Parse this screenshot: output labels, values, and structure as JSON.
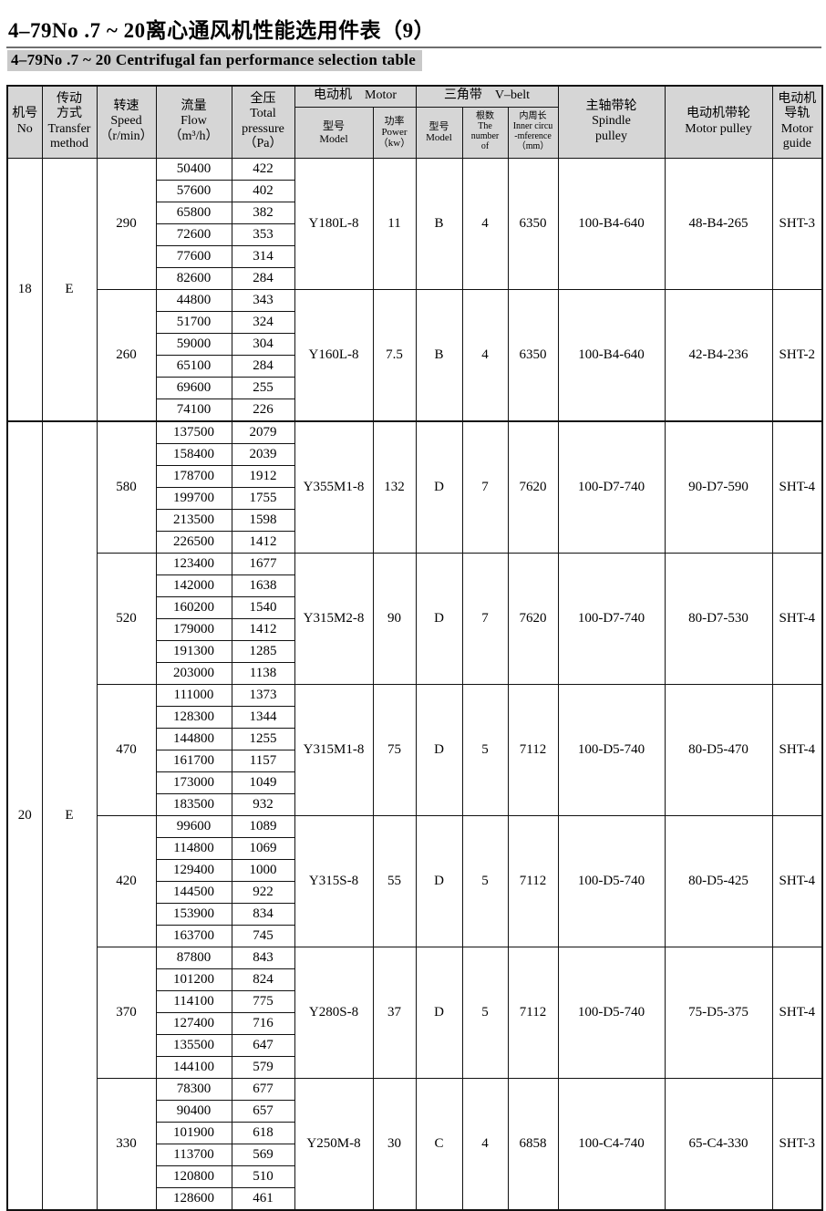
{
  "title": "4–79No .7 ~ 20离心通风机性能选用件表（9）",
  "subtitle": "4–79No .7 ~ 20 Centrifugal fan performance selection table",
  "colors": {
    "header_bg": "#d6d6d6",
    "subtitle_bg": "#c9c9c9",
    "border": "#111111",
    "text": "#000000"
  },
  "table": {
    "headers": {
      "no": "机号\nNo",
      "transfer": "传动\n方式\nTransfer\nmethod",
      "speed": "转速\nSpeed\n（r/min）",
      "flow": "流量\nFlow\n（m³/h）",
      "pressure": "全压\nTotal\npressure\n（Pa）",
      "motor_group": "电动机　Motor",
      "motor_model": "型号\nModel",
      "motor_power": "功率\nPower\n（kw）",
      "vbelt_group": "三角带　V–belt",
      "belt_model": "型号\nModel",
      "belt_number": "根数\nThe\nnumber\nof",
      "belt_circumference": "内周长\nInner circu\n-mference\n（mm）",
      "spindle_pulley": "主轴带轮\nSpindle\npulley",
      "motor_pulley": "电动机带轮\nMotor pulley",
      "motor_guide": "电动机\n导轨\nMotor\nguide"
    },
    "sections": [
      {
        "no": "18",
        "transfer": "E",
        "subsections": [
          {
            "speed": "290",
            "rows": [
              [
                "50400",
                "422"
              ],
              [
                "57600",
                "402"
              ],
              [
                "65800",
                "382"
              ],
              [
                "72600",
                "353"
              ],
              [
                "77600",
                "314"
              ],
              [
                "82600",
                "284"
              ]
            ],
            "motor_model": "Y180L-8",
            "motor_power": "11",
            "belt_model": "B",
            "belt_number": "4",
            "belt_circumference": "6350",
            "spindle_pulley": "100-B4-640",
            "motor_pulley": "48-B4-265",
            "motor_guide": "SHT-3"
          },
          {
            "speed": "260",
            "rows": [
              [
                "44800",
                "343"
              ],
              [
                "51700",
                "324"
              ],
              [
                "59000",
                "304"
              ],
              [
                "65100",
                "284"
              ],
              [
                "69600",
                "255"
              ],
              [
                "74100",
                "226"
              ]
            ],
            "motor_model": "Y160L-8",
            "motor_power": "7.5",
            "belt_model": "B",
            "belt_number": "4",
            "belt_circumference": "6350",
            "spindle_pulley": "100-B4-640",
            "motor_pulley": "42-B4-236",
            "motor_guide": "SHT-2"
          }
        ]
      },
      {
        "no": "20",
        "transfer": "E",
        "subsections": [
          {
            "speed": "580",
            "rows": [
              [
                "137500",
                "2079"
              ],
              [
                "158400",
                "2039"
              ],
              [
                "178700",
                "1912"
              ],
              [
                "199700",
                "1755"
              ],
              [
                "213500",
                "1598"
              ],
              [
                "226500",
                "1412"
              ]
            ],
            "motor_model": "Y355M1-8",
            "motor_power": "132",
            "belt_model": "D",
            "belt_number": "7",
            "belt_circumference": "7620",
            "spindle_pulley": "100-D7-740",
            "motor_pulley": "90-D7-590",
            "motor_guide": "SHT-4"
          },
          {
            "speed": "520",
            "rows": [
              [
                "123400",
                "1677"
              ],
              [
                "142000",
                "1638"
              ],
              [
                "160200",
                "1540"
              ],
              [
                "179000",
                "1412"
              ],
              [
                "191300",
                "1285"
              ],
              [
                "203000",
                "1138"
              ]
            ],
            "motor_model": "Y315M2-8",
            "motor_power": "90",
            "belt_model": "D",
            "belt_number": "7",
            "belt_circumference": "7620",
            "spindle_pulley": "100-D7-740",
            "motor_pulley": "80-D7-530",
            "motor_guide": "SHT-4"
          },
          {
            "speed": "470",
            "rows": [
              [
                "111000",
                "1373"
              ],
              [
                "128300",
                "1344"
              ],
              [
                "144800",
                "1255"
              ],
              [
                "161700",
                "1157"
              ],
              [
                "173000",
                "1049"
              ],
              [
                "183500",
                "932"
              ]
            ],
            "motor_model": "Y315M1-8",
            "motor_power": "75",
            "belt_model": "D",
            "belt_number": "5",
            "belt_circumference": "7112",
            "spindle_pulley": "100-D5-740",
            "motor_pulley": "80-D5-470",
            "motor_guide": "SHT-4"
          },
          {
            "speed": "420",
            "rows": [
              [
                "99600",
                "1089"
              ],
              [
                "114800",
                "1069"
              ],
              [
                "129400",
                "1000"
              ],
              [
                "144500",
                "922"
              ],
              [
                "153900",
                "834"
              ],
              [
                "163700",
                "745"
              ]
            ],
            "motor_model": "Y315S-8",
            "motor_power": "55",
            "belt_model": "D",
            "belt_number": "5",
            "belt_circumference": "7112",
            "spindle_pulley": "100-D5-740",
            "motor_pulley": "80-D5-425",
            "motor_guide": "SHT-4"
          },
          {
            "speed": "370",
            "rows": [
              [
                "87800",
                "843"
              ],
              [
                "101200",
                "824"
              ],
              [
                "114100",
                "775"
              ],
              [
                "127400",
                "716"
              ],
              [
                "135500",
                "647"
              ],
              [
                "144100",
                "579"
              ]
            ],
            "motor_model": "Y280S-8",
            "motor_power": "37",
            "belt_model": "D",
            "belt_number": "5",
            "belt_circumference": "7112",
            "spindle_pulley": "100-D5-740",
            "motor_pulley": "75-D5-375",
            "motor_guide": "SHT-4"
          },
          {
            "speed": "330",
            "rows": [
              [
                "78300",
                "677"
              ],
              [
                "90400",
                "657"
              ],
              [
                "101900",
                "618"
              ],
              [
                "113700",
                "569"
              ],
              [
                "120800",
                "510"
              ],
              [
                "128600",
                "461"
              ]
            ],
            "motor_model": "Y250M-8",
            "motor_power": "30",
            "belt_model": "C",
            "belt_number": "4",
            "belt_circumference": "6858",
            "spindle_pulley": "100-C4-740",
            "motor_pulley": "65-C4-330",
            "motor_guide": "SHT-3"
          }
        ]
      }
    ]
  }
}
